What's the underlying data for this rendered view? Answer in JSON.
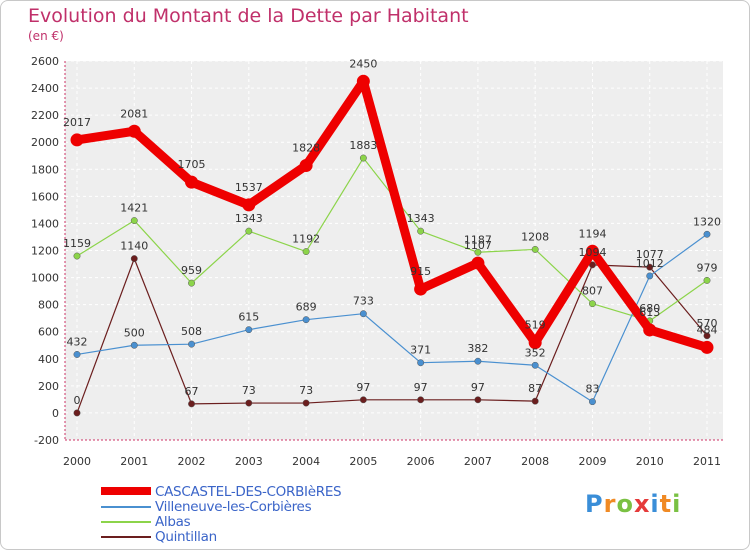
{
  "header": {
    "title": "Evolution du Montant de la Dette par Habitant",
    "subtitle": "(en €)"
  },
  "logo": {
    "letters": [
      "P",
      "r",
      "o",
      "x",
      "i",
      "t",
      "i"
    ],
    "colors": [
      "#3a8ed8",
      "#f08a24",
      "#7ac143",
      "#e53a3a",
      "#3a8ed8",
      "#f08a24",
      "#7ac143"
    ]
  },
  "chart_data": {
    "type": "line",
    "title": "Evolution du Montant de la Dette par Habitant",
    "subtitle": "(en €)",
    "xlabel": "",
    "ylabel": "",
    "x": [
      "2000",
      "2001",
      "2002",
      "2003",
      "2004",
      "2005",
      "2006",
      "2007",
      "2008",
      "2009",
      "2010",
      "2011"
    ],
    "ylim": [
      -200,
      2600
    ],
    "yticks": [
      -200,
      0,
      200,
      400,
      600,
      800,
      1000,
      1200,
      1400,
      1600,
      1800,
      2000,
      2200,
      2400,
      2600
    ],
    "grid": true,
    "legend": "bottom-left",
    "series": [
      {
        "name": "CASCASTEL-DES-CORBIèRES",
        "color": "#ee0000",
        "thick": true,
        "values": [
          2017,
          2081,
          1705,
          1537,
          1828,
          2450,
          915,
          1107,
          519,
          1194,
          613,
          484
        ],
        "labels": [
          "2017",
          "2081",
          "1705",
          "1537",
          "1828",
          "2450",
          "915",
          "1107",
          "519",
          "1194",
          "613",
          "484"
        ]
      },
      {
        "name": "Villeneuve-les-Corbières",
        "color": "#4a90d0",
        "thick": false,
        "values": [
          432,
          500,
          508,
          615,
          689,
          733,
          371,
          382,
          352,
          83,
          1012,
          1320
        ],
        "labels": [
          "432",
          "500",
          "508",
          "615",
          "689",
          "733",
          "371",
          "382",
          "352",
          "83",
          "1012",
          "1320"
        ]
      },
      {
        "name": "Albas",
        "color": "#8cd44a",
        "thick": false,
        "values": [
          1159,
          1421,
          959,
          1343,
          1192,
          1883,
          1343,
          1187,
          1208,
          807,
          680,
          979
        ],
        "labels": [
          "1159",
          "1421",
          "959",
          "1343",
          "1192",
          "1883",
          "1343",
          "1187",
          "1208",
          "807",
          "680",
          "979"
        ]
      },
      {
        "name": "Quintillan",
        "color": "#6b1e1e",
        "thick": false,
        "values": [
          0,
          1140,
          67,
          73,
          73,
          97,
          97,
          97,
          87,
          1094,
          1077,
          570
        ],
        "labels": [
          "0",
          "1140",
          "67",
          "73",
          "73",
          "97",
          "97",
          "97",
          "87",
          "1094",
          "1077",
          "570"
        ]
      }
    ]
  }
}
